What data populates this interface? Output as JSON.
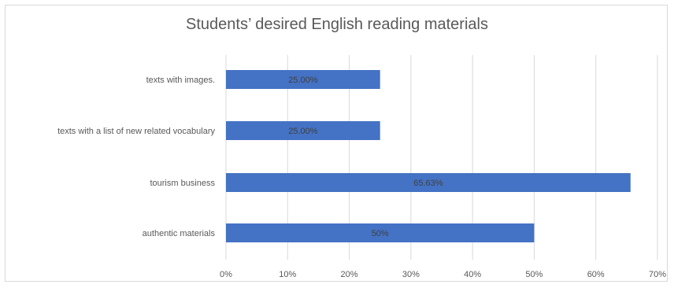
{
  "chart_data": {
    "type": "bar",
    "orientation": "horizontal",
    "title": "Students’ desired English reading materials",
    "categories": [
      "texts with images.",
      "texts with a list of new related vocabulary",
      "tourism business",
      "authentic materials"
    ],
    "values": [
      25,
      25,
      65.63,
      50
    ],
    "data_labels": [
      "25.00%",
      "25.00%",
      "65.63%",
      "50%"
    ],
    "xlim": [
      0,
      70
    ],
    "x_ticks": [
      "0%",
      "10%",
      "20%",
      "30%",
      "40%",
      "50%",
      "60%",
      "70%"
    ],
    "grid": true,
    "bar_color": "#4472c4",
    "grid_color": "#d9d9d9"
  }
}
